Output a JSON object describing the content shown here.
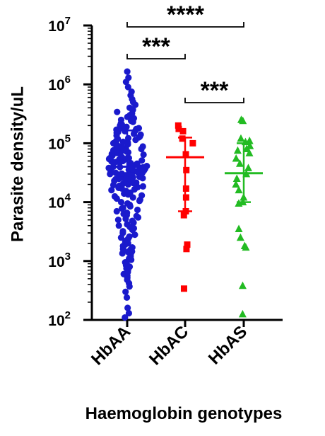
{
  "chart_data": {
    "type": "scatter",
    "subtype": "dot-plot-with-mean-and-sd",
    "ylabel": "Parasite density/uL",
    "xlabel": "Haemoglobin genotypes",
    "y_scale": "log10",
    "ylim": [
      100,
      10000000
    ],
    "yticks": [
      {
        "value": 100,
        "base": "10",
        "exp": "2"
      },
      {
        "value": 1000,
        "base": "10",
        "exp": "3"
      },
      {
        "value": 10000,
        "base": "10",
        "exp": "4"
      },
      {
        "value": 100000,
        "base": "10",
        "exp": "5"
      },
      {
        "value": 1000000,
        "base": "10",
        "exp": "6"
      },
      {
        "value": 10000000,
        "base": "10",
        "exp": "7"
      }
    ],
    "categories": [
      "HbAA",
      "HbAC",
      "HbAS"
    ],
    "series": [
      {
        "category": "HbAA",
        "color": "#1a1acc",
        "marker": "circle",
        "center": 40000,
        "error_low": 24000,
        "error_high": 165000,
        "points": [
          110,
          130,
          160,
          240,
          300,
          370,
          420,
          480,
          520,
          560,
          600,
          650,
          700,
          750,
          800,
          850,
          900,
          950,
          1050,
          1100,
          1200,
          1300,
          1350,
          1400,
          1450,
          1500,
          1550,
          1600,
          1700,
          1800,
          1900,
          2000,
          2100,
          2200,
          2400,
          2500,
          2600,
          2800,
          3000,
          3200,
          3400,
          3600,
          3800,
          4000,
          4200,
          4500,
          4800,
          5000,
          5200,
          5500,
          5800,
          6000,
          6300,
          6600,
          7000,
          7400,
          7800,
          8000,
          8500,
          9000,
          9500,
          10000,
          10500,
          11000,
          11500,
          12000,
          12500,
          13000,
          13500,
          14000,
          14500,
          15000,
          15500,
          16000,
          16500,
          17000,
          17500,
          18000,
          18500,
          19000,
          19500,
          20000,
          20500,
          21000,
          21500,
          22000,
          22500,
          23000,
          23500,
          24000,
          24500,
          25000,
          25500,
          26000,
          26500,
          27000,
          27500,
          28000,
          28500,
          29000,
          29500,
          30000,
          30500,
          31000,
          31500,
          32000,
          32500,
          33000,
          33500,
          34000,
          34500,
          35000,
          35500,
          36000,
          36500,
          37000,
          37500,
          38000,
          38500,
          39000,
          39500,
          40000,
          41000,
          42000,
          43000,
          44000,
          45000,
          46000,
          47000,
          48000,
          49000,
          50000,
          51000,
          52000,
          53000,
          54000,
          55000,
          56000,
          57000,
          58000,
          59000,
          60000,
          62000,
          64000,
          66000,
          68000,
          70000,
          72000,
          74000,
          76000,
          78000,
          80000,
          82000,
          84000,
          86000,
          88000,
          90000,
          93000,
          96000,
          100000,
          103000,
          106000,
          110000,
          114000,
          118000,
          122000,
          126000,
          130000,
          135000,
          140000,
          145000,
          150000,
          155000,
          160000,
          165000,
          170000,
          175000,
          180000,
          185000,
          190000,
          200000,
          210000,
          220000,
          230000,
          240000,
          250000,
          265000,
          280000,
          300000,
          320000,
          340000,
          370000,
          400000,
          450000,
          500000,
          560000,
          650000,
          750000,
          900000,
          1100000,
          1300000,
          1650000
        ]
      },
      {
        "category": "HbAC",
        "color": "#ff0000",
        "marker": "square",
        "center": 58000,
        "error_low": 7000,
        "error_high": 125000,
        "points": [
          200000,
          175000,
          160000,
          120000,
          100000,
          65000,
          35000,
          17000,
          12000,
          7000,
          6000,
          1900,
          1600,
          340
        ]
      },
      {
        "category": "HbAS",
        "color": "#22bb22",
        "marker": "triangle",
        "center": 31000,
        "error_low": 10000,
        "error_high": 100000,
        "points": [
          250000,
          240000,
          120000,
          110000,
          105000,
          90000,
          80000,
          75000,
          68000,
          55000,
          45000,
          38000,
          30000,
          25000,
          20000,
          16000,
          12000,
          10000,
          9500,
          3500,
          2500,
          1800,
          1700,
          380,
          125
        ]
      }
    ],
    "significance": [
      {
        "from": "HbAA",
        "to": "HbAS",
        "label": "****"
      },
      {
        "from": "HbAA",
        "to": "HbAC",
        "label": "***"
      },
      {
        "from": "HbAC",
        "to": "HbAS",
        "label": "***"
      }
    ]
  }
}
